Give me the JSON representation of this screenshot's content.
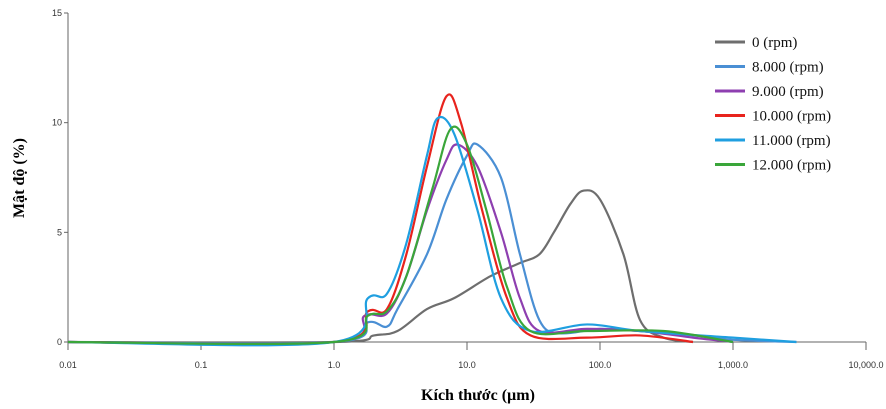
{
  "chart_data": {
    "type": "line",
    "x_label": "Kích thước (µm)",
    "y_label": "Mật độ (%)",
    "xscale": "log",
    "xlim": [
      0.01,
      10000
    ],
    "ylim": [
      0,
      15
    ],
    "xticks": [
      0.01,
      0.1,
      {
        "value": 1,
        "label": "1.0"
      },
      {
        "value": 10,
        "label": "10.0"
      },
      {
        "value": 100,
        "label": "100.0"
      },
      {
        "value": 1000,
        "label": "1,000.0"
      },
      {
        "value": 10000,
        "label": "10,000.0"
      }
    ],
    "yticks": [
      0,
      5,
      10,
      15
    ],
    "legend": "top-right",
    "series": [
      {
        "name": "0 (rpm)",
        "color": "#6e6e6e",
        "x": [
          0.01,
          1,
          2,
          3,
          5,
          8,
          15,
          25,
          35,
          45,
          60,
          75,
          100,
          150,
          200,
          300,
          500
        ],
        "values": [
          0,
          0,
          0.3,
          0.5,
          1.5,
          2,
          3,
          3.6,
          4,
          5,
          6.3,
          6.9,
          6.5,
          4,
          1,
          0.2,
          0
        ]
      },
      {
        "name": "8.000 (rpm)",
        "color": "#4a8fd4",
        "x": [
          0.01,
          1,
          1.8,
          2.5,
          3,
          5,
          7,
          10,
          12,
          18,
          25,
          35,
          50,
          100,
          200,
          500,
          1000,
          3000
        ],
        "values": [
          0,
          0,
          0.9,
          0.7,
          1.5,
          4,
          6.5,
          8.5,
          9,
          7.5,
          4,
          1,
          0.4,
          0.6,
          0.5,
          0.3,
          0.1,
          0
        ]
      },
      {
        "name": "9.000 (rpm)",
        "color": "#8e3fb0",
        "x": [
          0.01,
          1,
          1.7,
          2.5,
          3.5,
          5,
          7,
          8.5,
          12,
          18,
          25,
          35,
          80,
          200,
          500,
          1000
        ],
        "values": [
          0,
          0,
          1.2,
          1.3,
          3,
          6,
          8.3,
          9,
          8,
          5,
          2,
          0.5,
          0.6,
          0.5,
          0.2,
          0
        ]
      },
      {
        "name": "10.000 (rpm)",
        "color": "#e8231d",
        "x": [
          0.01,
          1,
          1.8,
          2.5,
          3.5,
          5,
          7,
          9,
          13,
          20,
          30,
          80,
          200,
          500
        ],
        "values": [
          0,
          0,
          1.4,
          1.5,
          4,
          8,
          11.2,
          10,
          6,
          2,
          0.3,
          0.2,
          0.3,
          0
        ]
      },
      {
        "name": "11.000 (rpm)",
        "color": "#1f9fe0",
        "x": [
          0.01,
          1,
          1.8,
          2.5,
          3.5,
          5,
          6,
          8,
          12,
          18,
          30,
          80,
          200,
          1000,
          3000
        ],
        "values": [
          0,
          0,
          2,
          2.2,
          4.5,
          8.5,
          10.2,
          9.5,
          6,
          2,
          0.5,
          0.8,
          0.5,
          0.2,
          0
        ]
      },
      {
        "name": "12.000 (rpm)",
        "color": "#3aa63a",
        "x": [
          0.01,
          1,
          1.8,
          2.5,
          3.5,
          5.5,
          7.5,
          10,
          14,
          20,
          30,
          80,
          300,
          1000
        ],
        "values": [
          0,
          0,
          1.2,
          1.4,
          3,
          7,
          9.7,
          9,
          6,
          2.5,
          0.5,
          0.5,
          0.5,
          0
        ]
      }
    ]
  }
}
